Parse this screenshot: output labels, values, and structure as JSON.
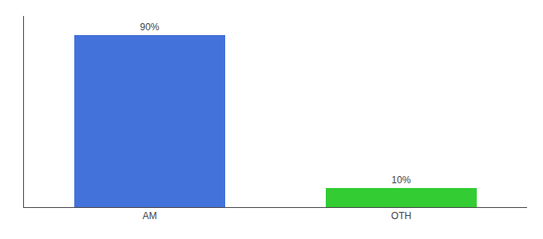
{
  "chart_data": {
    "type": "bar",
    "categories": [
      "AM",
      "OTH"
    ],
    "values": [
      90,
      10
    ],
    "value_labels": [
      "90%",
      "10%"
    ],
    "colors": [
      "#4472db",
      "#33cc33"
    ],
    "ylim": [
      0,
      100
    ],
    "grid": false,
    "data_labels": true,
    "tick_labels": "x"
  }
}
